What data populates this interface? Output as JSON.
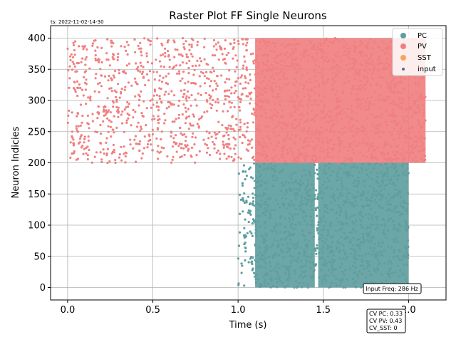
{
  "timestamp": "ts: 2022-11-02-14-30",
  "chart_data": {
    "type": "scatter",
    "title": "Raster Plot FF Single Neurons",
    "xlabel": "Time (s)",
    "ylabel": "Neuron Indicies",
    "xlim": [
      -0.1,
      2.22
    ],
    "ylim": [
      -20,
      420
    ],
    "xticks": [
      0.0,
      0.5,
      1.0,
      1.5,
      2.0
    ],
    "xtick_labels": [
      "0.0",
      "0.5",
      "1.0",
      "1.5",
      "2.0"
    ],
    "yticks": [
      0,
      50,
      100,
      150,
      200,
      250,
      300,
      350,
      400
    ],
    "ytick_labels": [
      "0",
      "50",
      "100",
      "150",
      "200",
      "250",
      "300",
      "350",
      "400"
    ],
    "grid": true,
    "legend_position": "top-right",
    "series": [
      {
        "name": "PC",
        "color": "#5f9ea0",
        "neuron_range": [
          0,
          200
        ],
        "time_range": [
          1.0,
          2.0
        ],
        "dense_bands": [
          [
            1.1,
            1.45
          ],
          [
            1.47,
            2.0
          ]
        ]
      },
      {
        "name": "PV",
        "color": "#f08080",
        "neuron_range": [
          200,
          400
        ],
        "time_range": [
          0.0,
          2.1
        ],
        "dense_bands": [
          [
            1.1,
            2.1
          ]
        ]
      },
      {
        "name": "SST",
        "color": "#f4a460",
        "neuron_range": [],
        "time_range": []
      },
      {
        "name": "input",
        "color": "#4c6a9a",
        "neuron_range": [],
        "time_range": []
      }
    ],
    "annotations": {
      "input_freq": "Input Freq: 286 Hz",
      "cv_pc": "CV PC: 0.33",
      "cv_pv": "CV PV: 0.43",
      "cv_sst": "CV_SST: 0"
    }
  }
}
